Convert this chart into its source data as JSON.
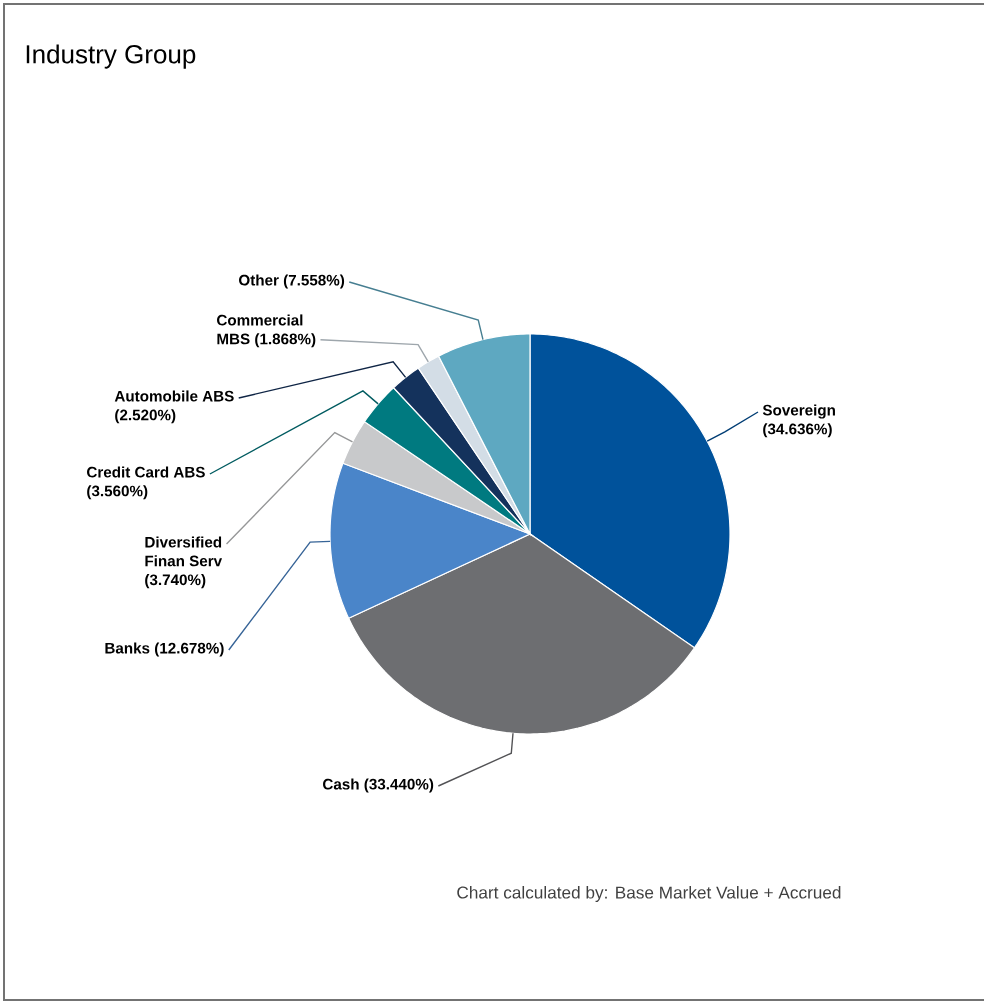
{
  "chart_data": {
    "type": "pie",
    "title": "Industry Group",
    "categories": [
      "Sovereign",
      "Cash",
      "Banks",
      "Diversified Finan Serv",
      "Credit Card ABS",
      "Automobile ABS",
      "Commercial MBS",
      "Other"
    ],
    "values": [
      34.636,
      33.44,
      12.678,
      3.74,
      3.56,
      2.52,
      1.868,
      7.558
    ],
    "value_labels": [
      "(34.636%)",
      "(33.440%)",
      "(12.678%)",
      "(3.740%)",
      "(3.560%)",
      "(2.520%)",
      "(1.868%)",
      "(7.558%)"
    ],
    "colors": [
      "#00529b",
      "#6d6e71",
      "#4a85c9",
      "#c8c9cb",
      "#007a80",
      "#14325c",
      "#d3dde6",
      "#5ea8c1"
    ],
    "annotations": [
      "Chart calculated by: Base Market Value + Accrued"
    ]
  }
}
